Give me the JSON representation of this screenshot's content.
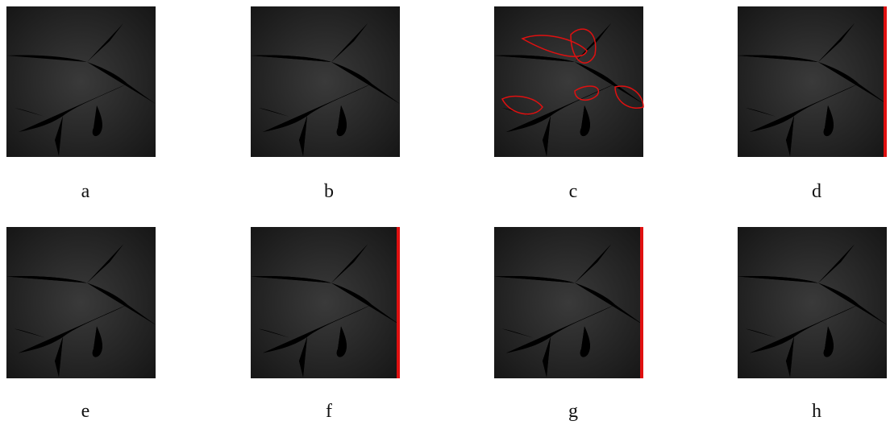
{
  "panels": [
    {
      "label": "a"
    },
    {
      "label": "b"
    },
    {
      "label": "c"
    },
    {
      "label": "d"
    },
    {
      "label": "e"
    },
    {
      "label": "f"
    },
    {
      "label": "g"
    },
    {
      "label": "h"
    }
  ]
}
